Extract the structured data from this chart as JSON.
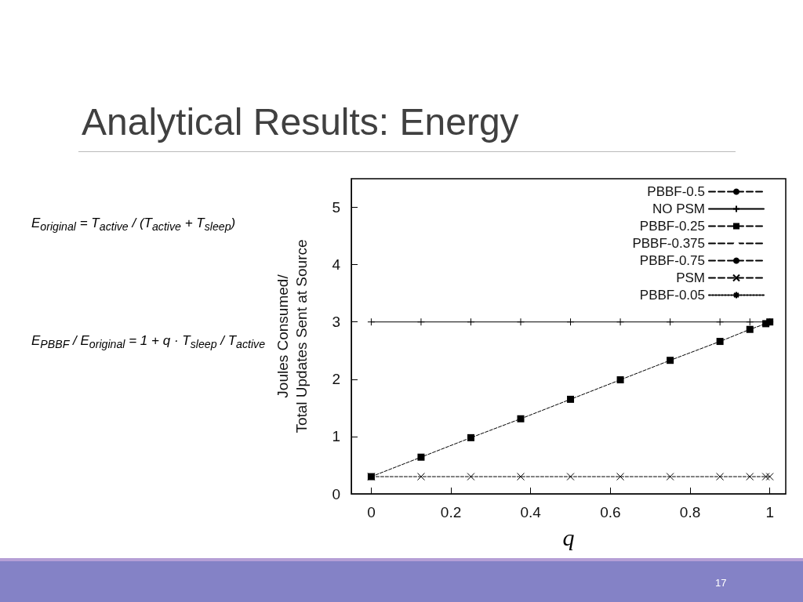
{
  "chart_data": {
    "type": "line",
    "title": "Analytical Results: Energy",
    "xlabel": "q",
    "ylabel": "Joules Consumed/\nTotal Updates Sent at Source",
    "annotations": [
      "E$_{original}$ = T$_{active}$ / (T$_{active}$ + T$_{sleep}$)",
      "E$_{PBBF}$ / E$_{original}$ = 1 + q · T$_{sleep}$ / T$_{active}$",
      "17"
    ],
    "x": [
      0,
      0.125,
      0.25,
      0.375,
      0.5,
      0.625,
      0.75,
      0.875,
      0.95,
      0.99,
      1
    ],
    "series": [
      {
        "name": "PBBF-0.5",
        "color": "#000000",
        "marker": "circle",
        "line_style": "dashed",
        "values": [
          null,
          null,
          null,
          null,
          null,
          null,
          null,
          null,
          null,
          null,
          null
        ]
      },
      {
        "name": "NO PSM",
        "color": "#000000",
        "marker": "plus",
        "line_style": "solid",
        "values": [
          3,
          3,
          3,
          3,
          3,
          3,
          3,
          3,
          3,
          null,
          3
        ]
      },
      {
        "name": "PBBF-0.25",
        "color": "#000000",
        "marker": "square",
        "line_style": "dashed",
        "values": [
          0.3,
          0.64,
          0.98,
          1.31,
          1.65,
          1.99,
          2.33,
          2.66,
          2.87,
          2.97,
          3.0
        ]
      },
      {
        "name": "PBBF-0.375",
        "color": "#000000",
        "marker": "triangle",
        "line_style": "dashed",
        "values": [
          null,
          null,
          null,
          null,
          null,
          null,
          null,
          null,
          null,
          null,
          null
        ]
      },
      {
        "name": "PBBF-0.75",
        "color": "#000000",
        "marker": "circle",
        "line_style": "dashed",
        "values": [
          null,
          null,
          null,
          null,
          null,
          null,
          null,
          null,
          null,
          null,
          null
        ]
      },
      {
        "name": "PSM",
        "color": "#000000",
        "marker": "cross",
        "line_style": "dashed",
        "values": [
          0.3,
          0.3,
          0.3,
          0.3,
          0.3,
          0.3,
          0.3,
          0.3,
          0.3,
          0.3,
          0.3
        ]
      },
      {
        "name": "PBBF-0.05",
        "color": "#000000",
        "marker": "star",
        "line_style": "dotted",
        "values": [
          null,
          null,
          null,
          null,
          null,
          null,
          null,
          null,
          null,
          null,
          null
        ]
      }
    ],
    "xlim": [
      -0.05,
      1.04
    ],
    "xticks": [
      0,
      0.2,
      0.4,
      0.6,
      0.8,
      1
    ],
    "ylim": [
      0,
      5.5
    ],
    "yticks": [
      0,
      1,
      2,
      3,
      4,
      5
    ],
    "grid": false,
    "legend": "top right"
  }
}
